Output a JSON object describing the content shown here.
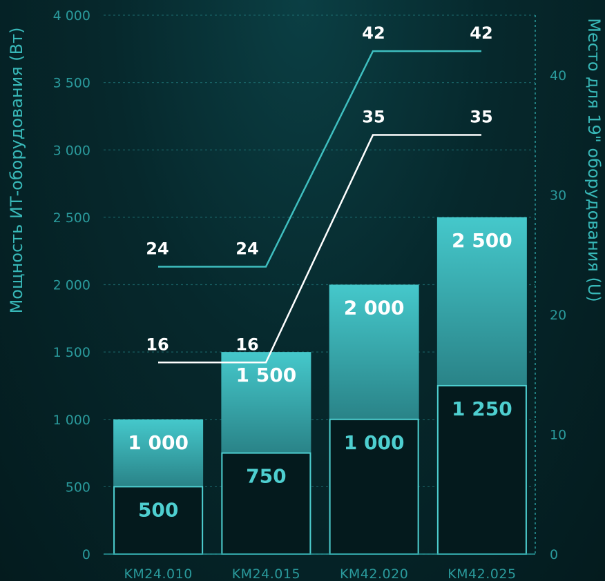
{
  "chart_data": {
    "type": "bar",
    "categories": [
      "KM24.010",
      "KM24.015",
      "KM42.020",
      "KM42.025"
    ],
    "ylabel": "Мощность ИТ-оборудования (Вт)",
    "ylabel_right": "Место для 19\" оборудования (U)",
    "ylim": [
      0,
      4000
    ],
    "ylim_right": [
      0,
      45
    ],
    "yticks": [
      "0",
      "500",
      "1 000",
      "1 500",
      "2 000",
      "2 500",
      "3 000",
      "3 500",
      "4 000"
    ],
    "yticks_right": [
      "0",
      "10",
      "20",
      "30",
      "40"
    ],
    "bars_total": {
      "values": [
        1000,
        1500,
        2000,
        2500
      ],
      "labels": [
        "1 000",
        "1 500",
        "2 000",
        "2 500"
      ]
    },
    "bars_inner": {
      "values": [
        500,
        750,
        1000,
        1250
      ],
      "labels": [
        "500",
        "750",
        "1 000",
        "1 250"
      ]
    },
    "lines_right_axis": [
      {
        "values": [
          24,
          24,
          42,
          42
        ],
        "labels": [
          "24",
          "24",
          "42",
          "42"
        ],
        "color": "#3fbfc0"
      },
      {
        "values": [
          16,
          16,
          35,
          35
        ],
        "labels": [
          "16",
          "16",
          "35",
          "35"
        ],
        "color": "#ffffff"
      }
    ],
    "colors": {
      "bar_top": "#45c8cb",
      "bar_bottom": "#0e3e44",
      "inner_outline": "#4ecfd0",
      "inner_fill": "#041a1d",
      "axis": "#2a9a9c"
    }
  }
}
